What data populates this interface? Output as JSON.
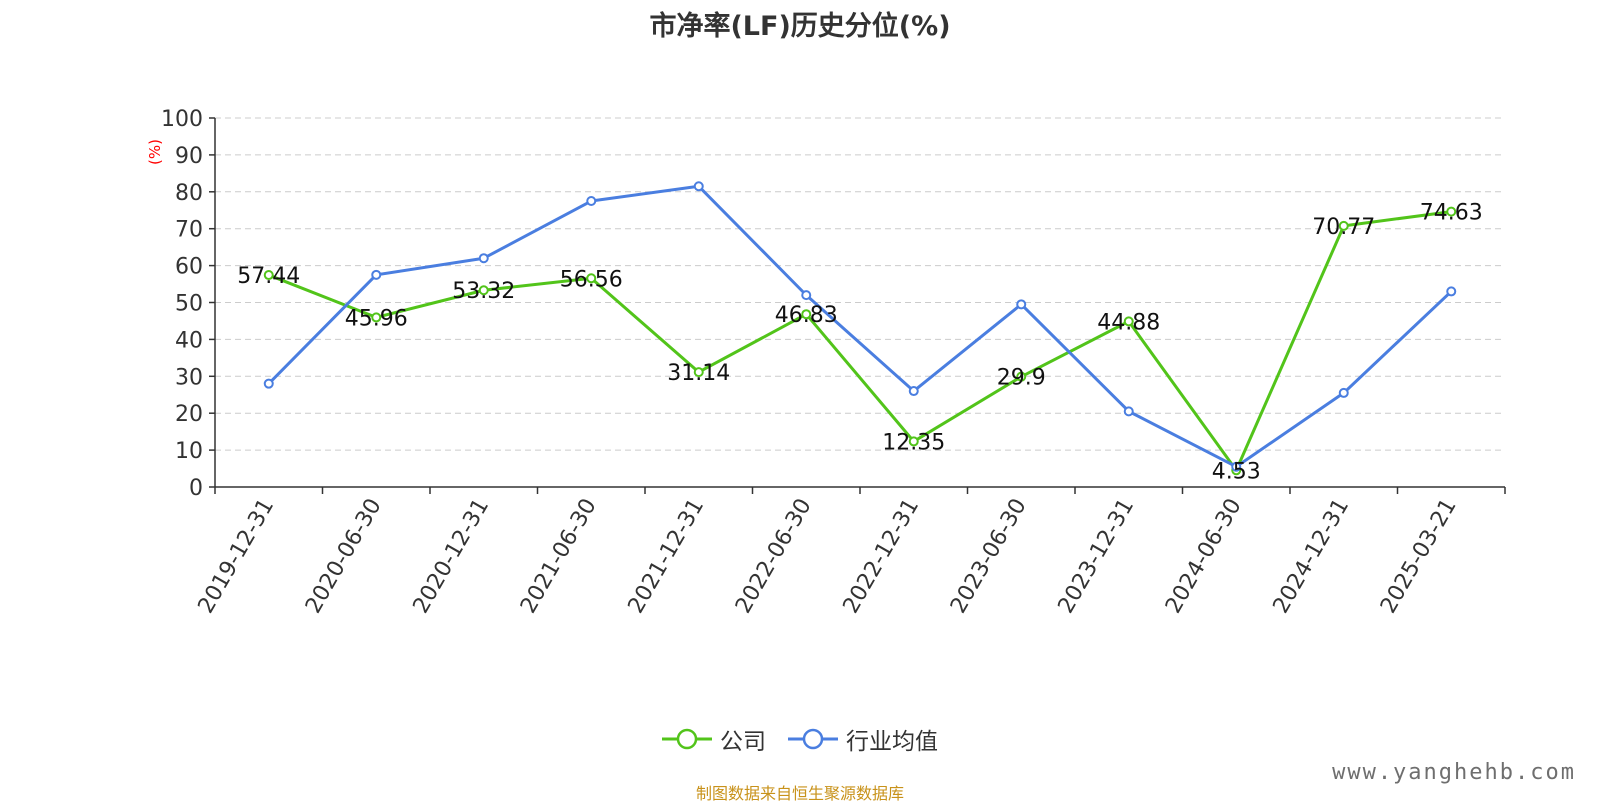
{
  "title": "市净率(LF)历史分位(%)",
  "y_unit_label": "(%)",
  "source": "制图数据来自恒生聚源数据库",
  "watermark": "www.yanghehb.com",
  "colors": {
    "company": "#52c41a",
    "industry": "#4a7ee0",
    "axis": "#333333",
    "grid": "#cccccc",
    "unit_label": "#ff0000"
  },
  "chart_data": {
    "type": "line",
    "title": "市净率(LF)历史分位(%)",
    "xlabel": "",
    "ylabel": "(%)",
    "ylim": [
      0,
      100
    ],
    "y_ticks": [
      0,
      10,
      20,
      30,
      40,
      50,
      60,
      70,
      80,
      90,
      100
    ],
    "grid": true,
    "legend_position": "bottom-center",
    "categories": [
      "2019-12-31",
      "2020-06-30",
      "2020-12-31",
      "2021-06-30",
      "2021-12-31",
      "2022-06-30",
      "2022-12-31",
      "2023-06-30",
      "2023-12-31",
      "2024-06-30",
      "2024-12-31",
      "2025-03-21"
    ],
    "series": [
      {
        "name": "公司",
        "color": "#52c41a",
        "show_labels": true,
        "values": [
          57.44,
          45.96,
          53.32,
          56.56,
          31.14,
          46.83,
          12.35,
          29.9,
          44.88,
          4.53,
          70.77,
          74.63
        ]
      },
      {
        "name": "行业均值",
        "color": "#4a7ee0",
        "show_labels": false,
        "values": [
          28,
          57.5,
          62,
          77.5,
          81.5,
          52,
          26,
          49.5,
          20.5,
          5.5,
          25.5,
          53
        ]
      }
    ]
  }
}
